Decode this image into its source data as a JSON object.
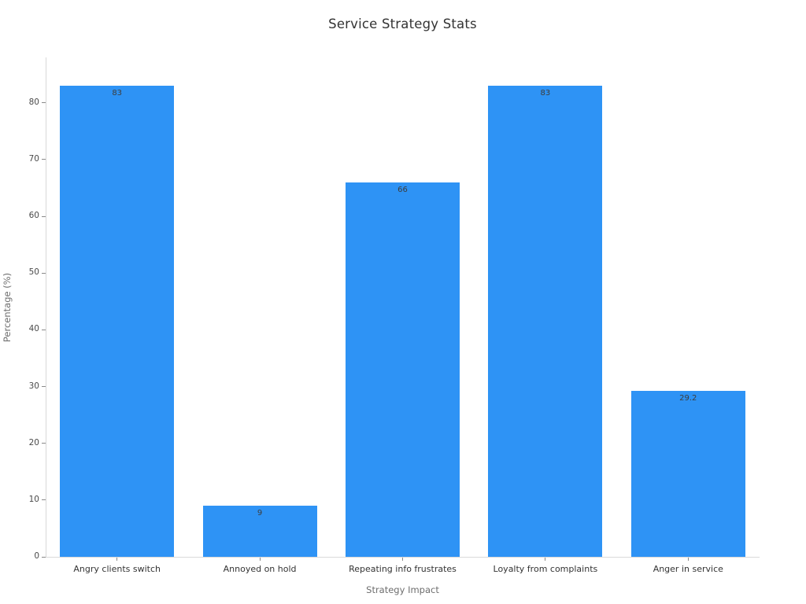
{
  "chart_data": {
    "type": "bar",
    "title": "Service Strategy Stats",
    "xlabel": "Strategy Impact",
    "ylabel": "Percentage (%)",
    "categories": [
      "Angry clients switch",
      "Annoyed on hold",
      "Repeating info frustrates",
      "Loyalty from complaints",
      "Anger in service"
    ],
    "values": [
      83,
      9,
      66,
      83,
      29.2
    ],
    "value_labels": [
      "83",
      "9",
      "66",
      "83",
      "29.2"
    ],
    "yticks": [
      0,
      10,
      20,
      30,
      40,
      50,
      60,
      70,
      80
    ],
    "ylim": [
      0,
      88
    ],
    "grid": false,
    "legend": null,
    "bar_color": "#2e93f5",
    "title_color": "#333333",
    "axis_title_color": "#6e6e6e",
    "tick_label_color": "#4a4a4a",
    "value_label_color": "#3d3d3d",
    "spine_color": "#d9d9d9"
  }
}
